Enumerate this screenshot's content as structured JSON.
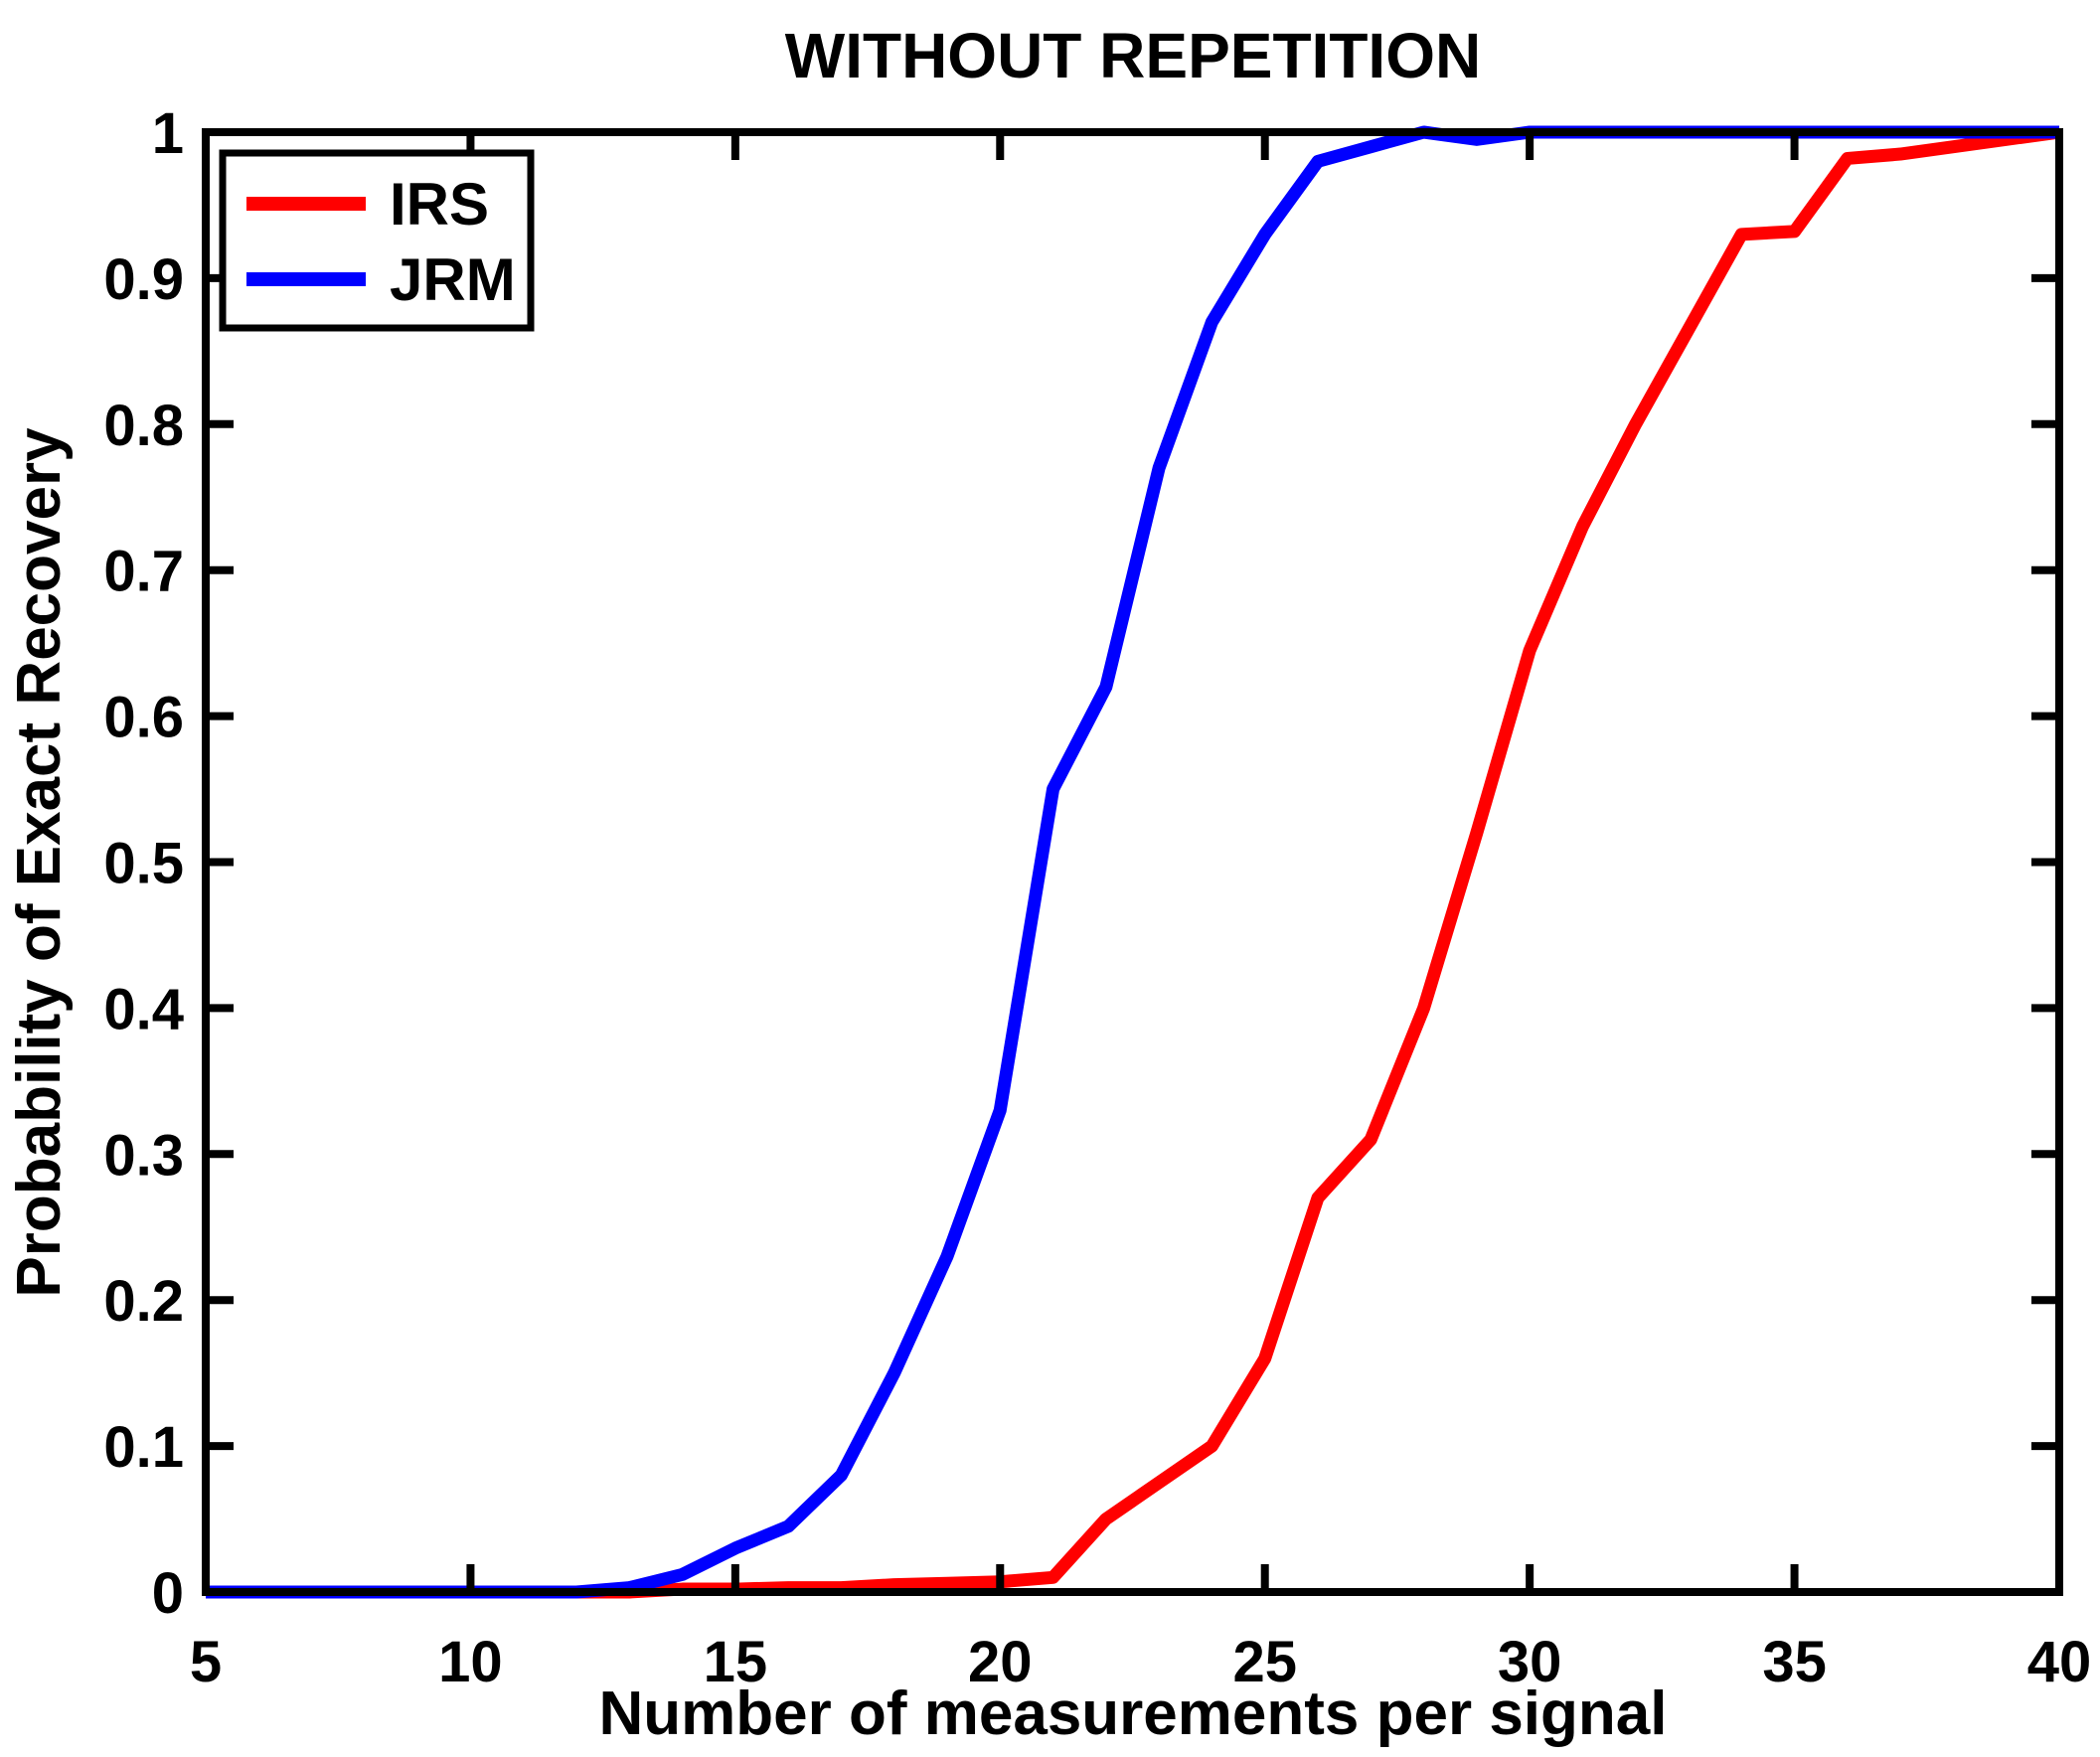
{
  "window": {
    "background": "#ffffff"
  },
  "chart_data": {
    "type": "line",
    "title": "WITHOUT REPETITION",
    "xlabel": "Number of measurements per signal",
    "ylabel": "Probability of Exact Recovery",
    "xlim": [
      5,
      40
    ],
    "ylim": [
      0,
      1
    ],
    "grid": false,
    "box": true,
    "tick_direction": "in",
    "x_ticks": [
      5,
      10,
      15,
      20,
      25,
      30,
      35,
      40
    ],
    "x_tick_labels": [
      "5",
      "10",
      "15",
      "20",
      "25",
      "30",
      "35",
      "40"
    ],
    "y_ticks": [
      0,
      0.1,
      0.2,
      0.3,
      0.4,
      0.5,
      0.6,
      0.7,
      0.8,
      0.9,
      1
    ],
    "y_tick_labels": [
      "0",
      "0.1",
      "0.2",
      "0.3",
      "0.4",
      "0.5",
      "0.6",
      "0.7",
      "0.8",
      "0.9",
      "1"
    ],
    "legend_position": "top-left",
    "axis_color": "#000000",
    "x": [
      5,
      6,
      7,
      8,
      9,
      10,
      11,
      12,
      13,
      14,
      15,
      16,
      17,
      18,
      19,
      20,
      21,
      22,
      23,
      24,
      25,
      26,
      27,
      28,
      29,
      30,
      31,
      32,
      33,
      34,
      35,
      36,
      37,
      38,
      39,
      40
    ],
    "series": [
      {
        "name": "IRS",
        "color": "#ff0000",
        "values": [
          0,
          0,
          0,
          0,
          0,
          0,
          0,
          0,
          0,
          0.002,
          0.002,
          0.003,
          0.003,
          0.005,
          0.006,
          0.007,
          0.01,
          0.05,
          0.075,
          0.1,
          0.16,
          0.27,
          0.31,
          0.4,
          0.52,
          0.645,
          0.73,
          0.8,
          0.865,
          0.93,
          0.932,
          0.982,
          0.985,
          0.99,
          0.995,
          1.0
        ]
      },
      {
        "name": "JRM",
        "color": "#0000ff",
        "values": [
          0,
          0,
          0,
          0,
          0,
          0,
          0,
          0,
          0.003,
          0.012,
          0.03,
          0.045,
          0.08,
          0.15,
          0.23,
          0.33,
          0.55,
          0.62,
          0.77,
          0.87,
          0.93,
          0.98,
          0.99,
          1.0,
          0.995,
          1.0,
          1.0,
          1.0,
          1.0,
          1.0,
          1.0,
          1.0,
          1.0,
          1.0,
          1.0,
          1.0
        ]
      }
    ]
  }
}
